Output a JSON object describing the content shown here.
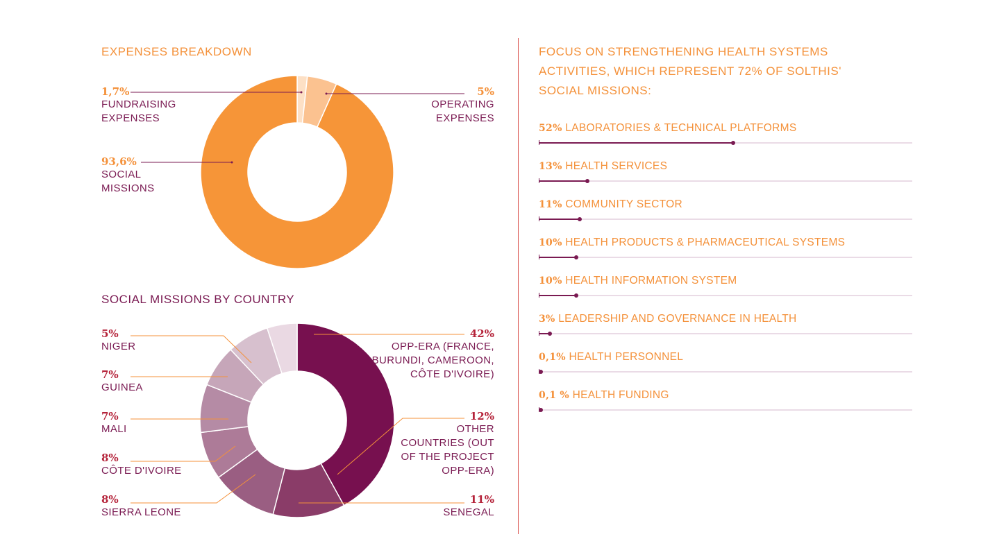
{
  "chart_data": [
    {
      "type": "pie",
      "title": "EXPENSES BREAKDOWN",
      "slices": [
        {
          "pct_label": "1,7%",
          "label": "FUNDRAISING EXPENSES",
          "value": 1.7,
          "color": "#fde0c5"
        },
        {
          "pct_label": "5%",
          "label": "OPERATING EXPENSES",
          "value": 5,
          "color": "#fbc290"
        },
        {
          "pct_label": "93,6%",
          "label": "SOCIAL MISSIONS",
          "value": 93.6,
          "color": "#f69538"
        }
      ]
    },
    {
      "type": "pie",
      "title": "SOCIAL MISSIONS BY COUNTRY",
      "slices": [
        {
          "pct_label": "42%",
          "label": "OPP-ERA (FRANCE, BURUNDI, CAMEROON, CÔTE D'IVOIRE)",
          "value": 42,
          "color": "#77104f"
        },
        {
          "pct_label": "12%",
          "label": "OTHER COUNTRIES (OUT OF THE PROJECT OPP-ERA)",
          "value": 12,
          "color": "#8a3c68"
        },
        {
          "pct_label": "11%",
          "label": "SENEGAL",
          "value": 11,
          "color": "#9a5e82"
        },
        {
          "pct_label": "8%",
          "label": "SIERRA LEONE",
          "value": 8,
          "color": "#ad7b98"
        },
        {
          "pct_label": "8%",
          "label": "CÔTE D'IVOIRE",
          "value": 8,
          "color": "#b58ba5"
        },
        {
          "pct_label": "7%",
          "label": "MALI",
          "value": 7,
          "color": "#c6a6b9"
        },
        {
          "pct_label": "7%",
          "label": "GUINEA",
          "value": 7,
          "color": "#d7c0ce"
        },
        {
          "pct_label": "5%",
          "label": "NIGER",
          "value": 5,
          "color": "#ead9e3"
        }
      ]
    },
    {
      "type": "bar",
      "title": "FOCUS ON STRENGTHENING HEALTH SYSTEMS ACTIVITIES, WHICH REPRESENT 72% OF SOLTHIS' SOCIAL MISSIONS:",
      "xlim": [
        0,
        100
      ],
      "items": [
        {
          "pct_label": "52%",
          "label": "LABORATORIES & TECHNICAL PLATFORMS",
          "value": 52
        },
        {
          "pct_label": "13%",
          "label": "HEALTH SERVICES",
          "value": 13
        },
        {
          "pct_label": "11%",
          "label": "COMMUNITY SECTOR",
          "value": 11
        },
        {
          "pct_label": "10%",
          "label": "HEALTH PRODUCTS & PHARMACEUTICAL SYSTEMS",
          "value": 10
        },
        {
          "pct_label": "10%",
          "label": "HEALTH INFORMATION SYSTEM",
          "value": 10
        },
        {
          "pct_label": "3%",
          "label": "LEADERSHIP AND GOVERNANCE IN HEALTH",
          "value": 3
        },
        {
          "pct_label": "0,1%",
          "label": "HEALTH PERSONNEL",
          "value": 0.1
        },
        {
          "pct_label": "0,1 %",
          "label": "HEALTH FUNDING",
          "value": 0.1
        }
      ]
    }
  ]
}
